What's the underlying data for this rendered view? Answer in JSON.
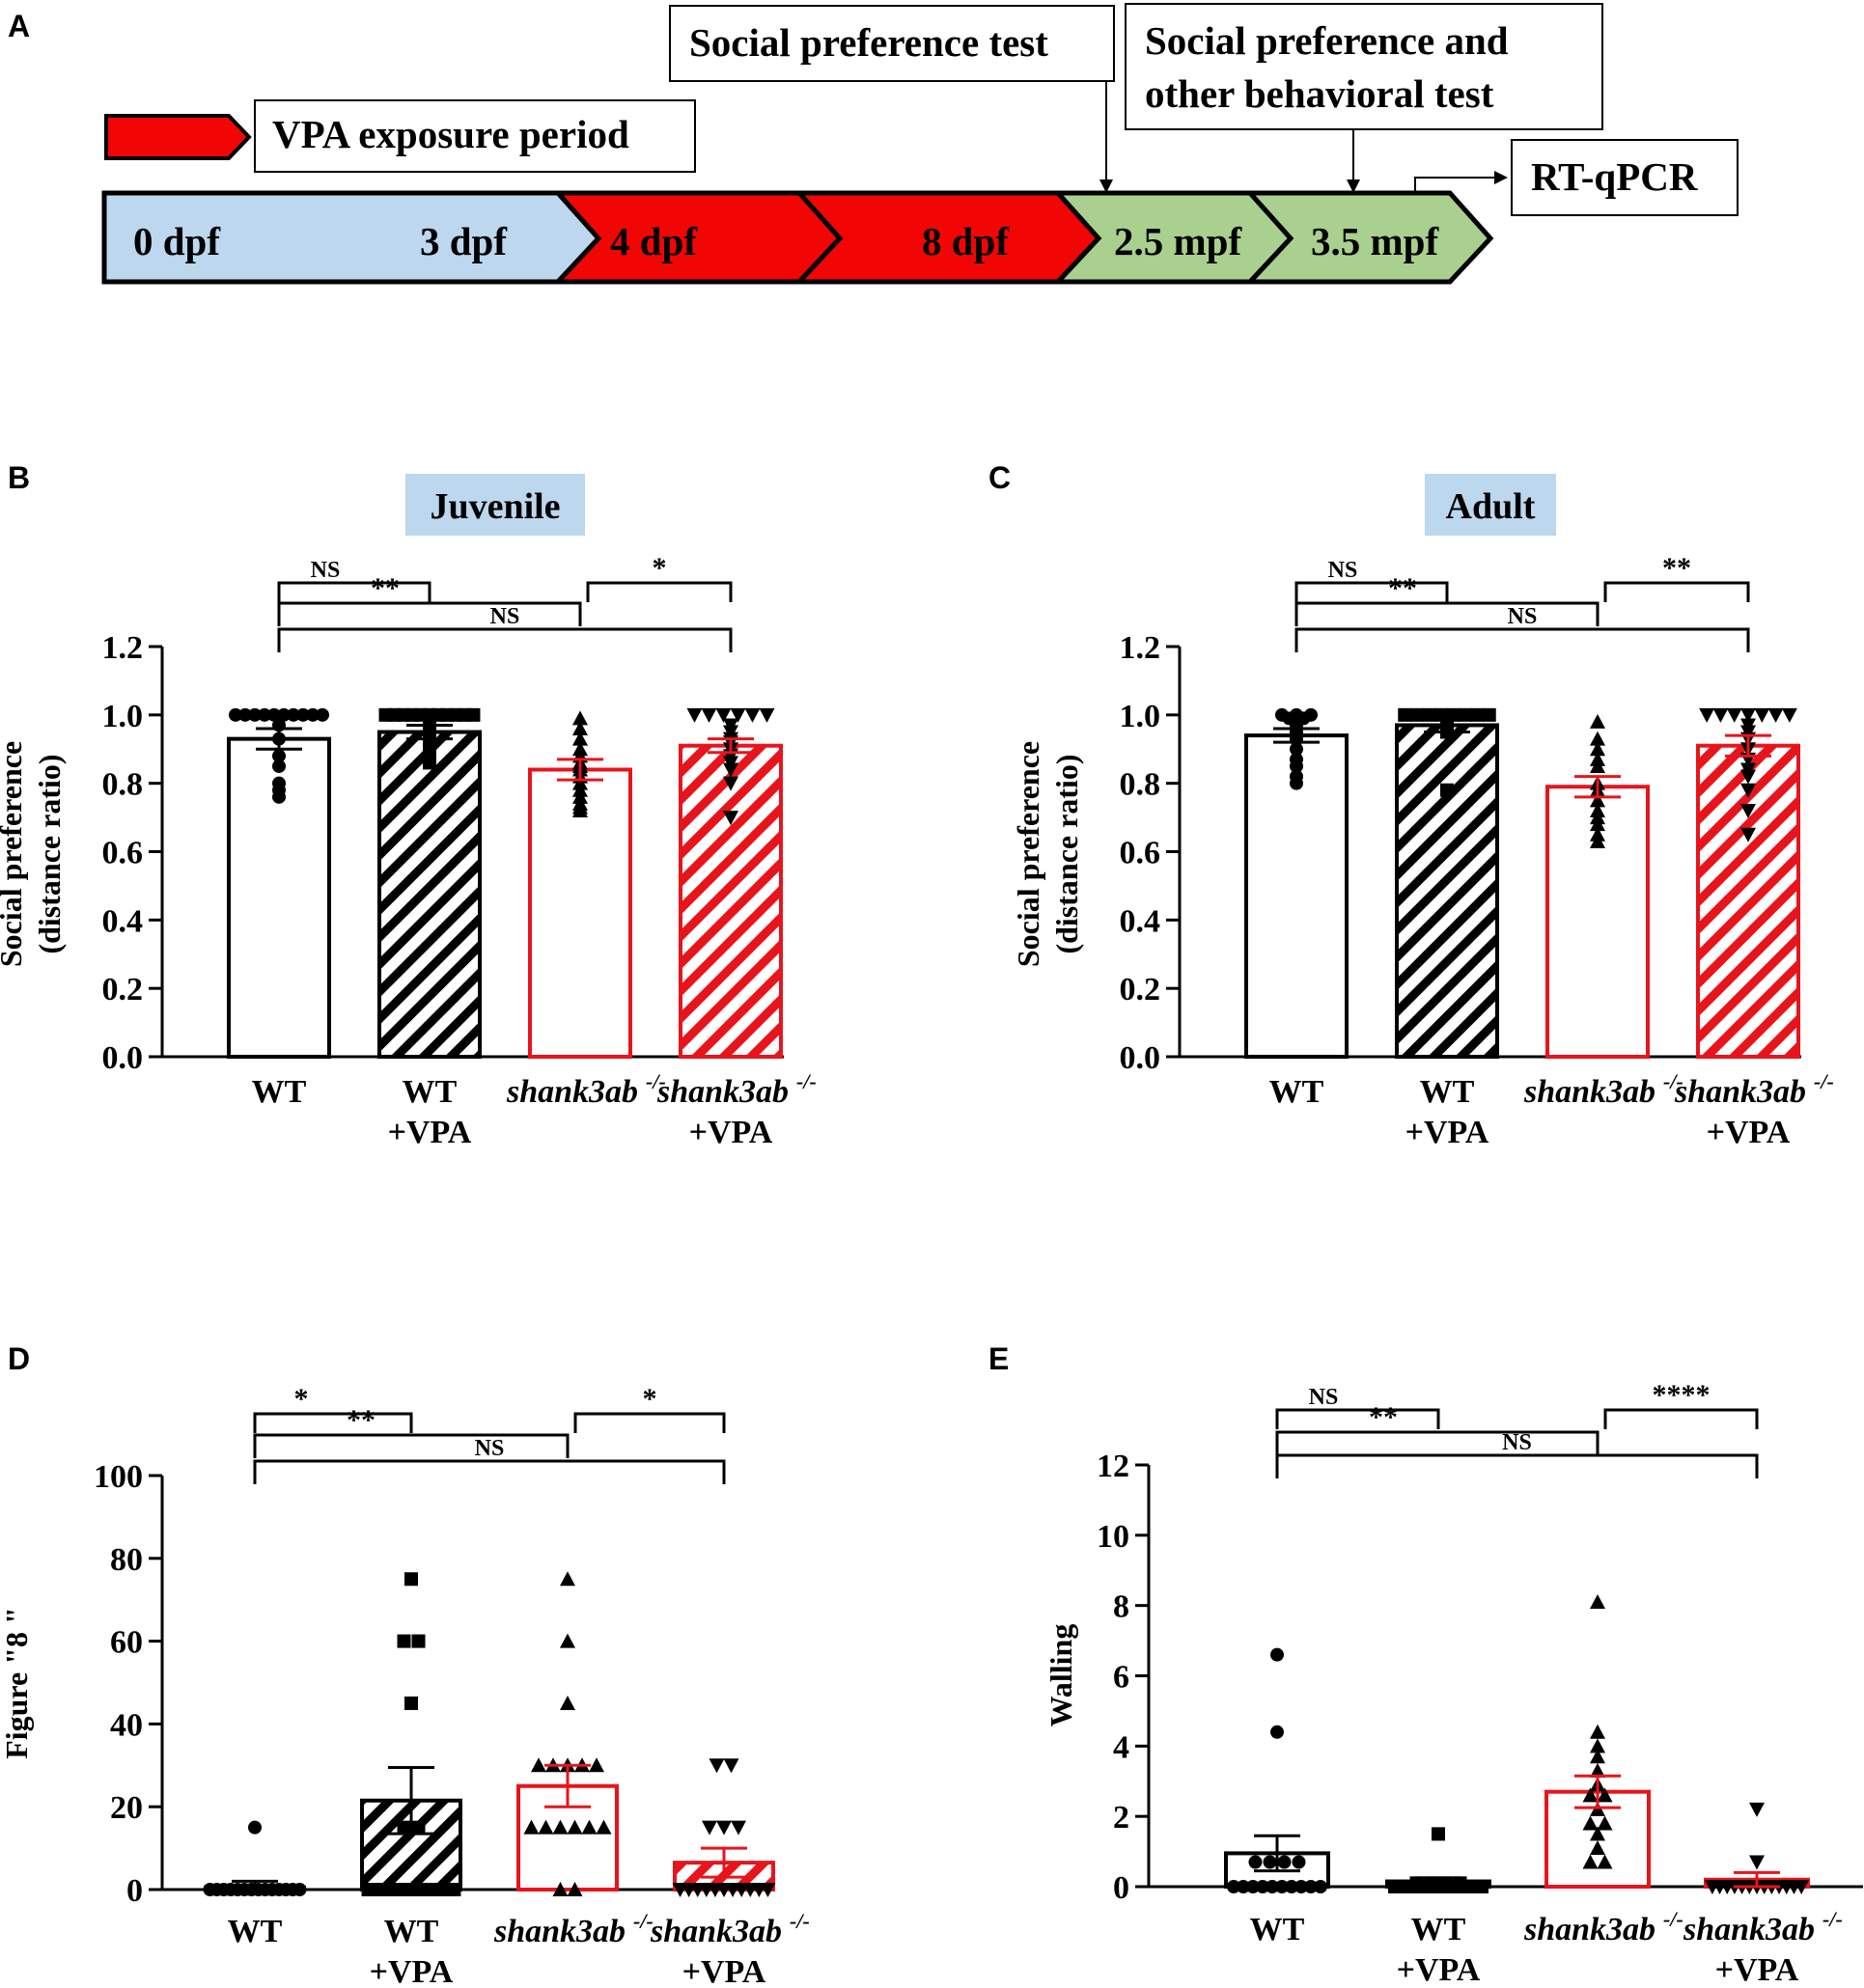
{
  "colors": {
    "black": "#000000",
    "red": "#e8141c",
    "light_blue": "#bcd7ee",
    "green": "#a9d08e",
    "timeline_red": "#f20505"
  },
  "timeline": {
    "panel_label": "A",
    "legend_label": "VPA exposure period",
    "segments": [
      "0 dpf",
      "3 dpf",
      "4 dpf",
      "8 dpf",
      "2.5 mpf",
      "3.5 mpf"
    ],
    "callouts": {
      "social_test": "Social preference test",
      "behavior_test_line1": "Social preference and",
      "behavior_test_line2": "other behavioral test",
      "qpcr": "RT-qPCR"
    }
  },
  "chart_data": [
    {
      "panel": "B",
      "type": "bar",
      "title": "Juvenile",
      "ylabel_line1": "Social preference",
      "ylabel_line2": "(distance ratio)",
      "ylim": [
        0,
        1.2
      ],
      "yticks": [
        "0.0",
        "0.2",
        "0.4",
        "0.6",
        "0.8",
        "1.0",
        "1.2"
      ],
      "categories": [
        {
          "line1": "WT",
          "line2": "",
          "italic": false
        },
        {
          "line1": "WT",
          "line2": "+VPA",
          "italic": false
        },
        {
          "line1": "shank3ab",
          "line2": "",
          "italic": true
        },
        {
          "line1": "shank3ab",
          "line2": "+VPA",
          "italic": true
        }
      ],
      "superscript": "-/-",
      "values": [
        0.93,
        0.95,
        0.84,
        0.91
      ],
      "sem": [
        0.03,
        0.02,
        0.03,
        0.02
      ],
      "points": [
        [
          1.0,
          1.0,
          1.0,
          1.0,
          1.0,
          1.0,
          1.0,
          1.0,
          1.0,
          1.0,
          0.97,
          0.93,
          0.88,
          0.85,
          0.8,
          0.78,
          0.76
        ],
        [
          1.0,
          1.0,
          1.0,
          1.0,
          1.0,
          1.0,
          1.0,
          1.0,
          1.0,
          1.0,
          1.0,
          0.98,
          0.96,
          0.95,
          0.93,
          0.91,
          0.88,
          0.86
        ],
        [
          0.99,
          0.96,
          0.93,
          0.9,
          0.88,
          0.86,
          0.85,
          0.84,
          0.82,
          0.8,
          0.78,
          0.76,
          0.74,
          0.73,
          0.72
        ],
        [
          1.0,
          1.0,
          1.0,
          1.0,
          1.0,
          1.0,
          0.97,
          0.95,
          0.93,
          0.92,
          0.9,
          0.88,
          0.86,
          0.84,
          0.8,
          0.7
        ]
      ],
      "comparisons": [
        {
          "from": 0,
          "to": 1,
          "label": "NS"
        },
        {
          "from": 2,
          "to": 3,
          "label": "*"
        },
        {
          "from": 0,
          "to": 2,
          "label": "**"
        },
        {
          "from": 0,
          "to": 3,
          "label": "NS"
        }
      ]
    },
    {
      "panel": "C",
      "type": "bar",
      "title": "Adult",
      "ylabel_line1": "Social preference",
      "ylabel_line2": "(distance ratio)",
      "ylim": [
        0,
        1.2
      ],
      "yticks": [
        "0.0",
        "0.2",
        "0.4",
        "0.6",
        "0.8",
        "1.0",
        "1.2"
      ],
      "categories": [
        {
          "line1": "WT",
          "line2": "",
          "italic": false
        },
        {
          "line1": "WT",
          "line2": "+VPA",
          "italic": false
        },
        {
          "line1": "shank3ab",
          "line2": "",
          "italic": true
        },
        {
          "line1": "shank3ab",
          "line2": "+VPA",
          "italic": true
        }
      ],
      "superscript": "-/-",
      "values": [
        0.94,
        0.97,
        0.79,
        0.91
      ],
      "sem": [
        0.02,
        0.02,
        0.03,
        0.03
      ],
      "points": [
        [
          1.0,
          1.0,
          1.0,
          0.99,
          0.99,
          0.97,
          0.95,
          0.94,
          0.93,
          0.9,
          0.87,
          0.85,
          0.82,
          0.8
        ],
        [
          1.0,
          1.0,
          1.0,
          1.0,
          1.0,
          1.0,
          1.0,
          1.0,
          0.99,
          0.98,
          0.97,
          0.96,
          0.95,
          0.78
        ],
        [
          0.98,
          0.93,
          0.9,
          0.87,
          0.85,
          0.8,
          0.78,
          0.75,
          0.72,
          0.7,
          0.68,
          0.65,
          0.63
        ],
        [
          1.0,
          1.0,
          1.0,
          1.0,
          1.0,
          1.0,
          1.0,
          0.97,
          0.95,
          0.93,
          0.9,
          0.87,
          0.84,
          0.82,
          0.78,
          0.72,
          0.65
        ]
      ],
      "comparisons": [
        {
          "from": 0,
          "to": 1,
          "label": "NS"
        },
        {
          "from": 2,
          "to": 3,
          "label": "**"
        },
        {
          "from": 0,
          "to": 2,
          "label": "**"
        },
        {
          "from": 0,
          "to": 3,
          "label": "NS"
        }
      ]
    },
    {
      "panel": "D",
      "type": "bar",
      "title": "",
      "ylabel_line1": "Figure \"8 \"",
      "ylabel_line2": "",
      "ylim": [
        0,
        100
      ],
      "yticks": [
        "0",
        "20",
        "40",
        "60",
        "80",
        "100"
      ],
      "categories": [
        {
          "line1": "WT",
          "line2": "",
          "italic": false
        },
        {
          "line1": "WT",
          "line2": "+VPA",
          "italic": false
        },
        {
          "line1": "shank3ab",
          "line2": "",
          "italic": true
        },
        {
          "line1": "shank3ab",
          "line2": "+VPA",
          "italic": true
        }
      ],
      "superscript": "-/-",
      "values": [
        0.5,
        21.5,
        25.0,
        6.5
      ],
      "sem": [
        1.5,
        8.0,
        5.0,
        3.5
      ],
      "points": [
        [
          15,
          0,
          0,
          0,
          0,
          0,
          0,
          0,
          0,
          0,
          0,
          0,
          0,
          0,
          0
        ],
        [
          75,
          60,
          60,
          45,
          15,
          15,
          0,
          0,
          0,
          0,
          0,
          0,
          0,
          0,
          0
        ],
        [
          75,
          60,
          45,
          30,
          30,
          30,
          30,
          30,
          15,
          15,
          15,
          15,
          15,
          15,
          0,
          0
        ],
        [
          30,
          30,
          15,
          15,
          15,
          0,
          0,
          0,
          0,
          0,
          0,
          0,
          0,
          0,
          0,
          0
        ]
      ],
      "comparisons": [
        {
          "from": 0,
          "to": 1,
          "label": "*"
        },
        {
          "from": 2,
          "to": 3,
          "label": "*"
        },
        {
          "from": 0,
          "to": 2,
          "label": "**"
        },
        {
          "from": 0,
          "to": 3,
          "label": "NS"
        }
      ]
    },
    {
      "panel": "E",
      "type": "bar",
      "title": "",
      "ylabel_line1": "Walling",
      "ylabel_line2": "",
      "ylim": [
        0,
        12
      ],
      "yticks": [
        "0",
        "2",
        "4",
        "6",
        "8",
        "10",
        "12"
      ],
      "categories": [
        {
          "line1": "WT",
          "line2": "",
          "italic": false
        },
        {
          "line1": "WT",
          "line2": "+VPA",
          "italic": false
        },
        {
          "line1": "shank3ab",
          "line2": "",
          "italic": true
        },
        {
          "line1": "shank3ab",
          "line2": "+VPA",
          "italic": true
        }
      ],
      "superscript": "-/-",
      "values": [
        0.95,
        0.15,
        2.7,
        0.2
      ],
      "sem": [
        0.5,
        0.1,
        0.45,
        0.2
      ],
      "points": [
        [
          6.6,
          4.4,
          0.7,
          0.7,
          0.7,
          0.7,
          0,
          0,
          0,
          0,
          0,
          0,
          0,
          0,
          0,
          0
        ],
        [
          1.5,
          0.1,
          0.1,
          0.1,
          0.1,
          0,
          0,
          0,
          0,
          0,
          0,
          0,
          0,
          0,
          0
        ],
        [
          8.1,
          4.4,
          4.0,
          3.7,
          3.3,
          2.9,
          2.6,
          2.6,
          2.2,
          1.8,
          1.8,
          1.5,
          1.1,
          0.7,
          0.7
        ],
        [
          2.2,
          0.7,
          0,
          0,
          0,
          0,
          0,
          0,
          0,
          0,
          0,
          0,
          0,
          0,
          0
        ]
      ],
      "comparisons": [
        {
          "from": 0,
          "to": 1,
          "label": "NS"
        },
        {
          "from": 2,
          "to": 3,
          "label": "****"
        },
        {
          "from": 0,
          "to": 2,
          "label": "**"
        },
        {
          "from": 0,
          "to": 3,
          "label": "NS"
        }
      ]
    }
  ]
}
